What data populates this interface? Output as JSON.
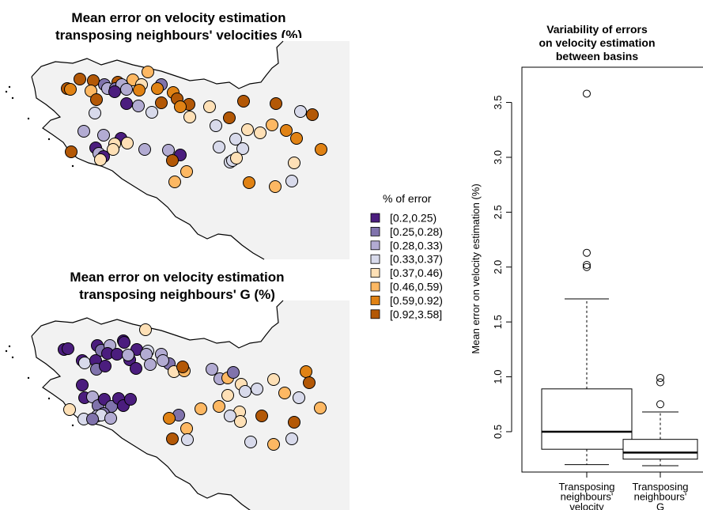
{
  "maps": {
    "top_title_lines": [
      "Mean error on velocity estimation",
      "transposing neighbours' velocities (%)"
    ],
    "bottom_title_lines": [
      "Mean error on velocity estimation",
      "transposing neighbours' G (%)"
    ],
    "legend": {
      "title": "% of error",
      "classes": [
        "[0.2,0.25)",
        "[0.25,0.28)",
        "[0.28,0.33)",
        "[0.33,0.37)",
        "[0.37,0.46)",
        "[0.46,0.59)",
        "[0.59,0.92)",
        "[0.92,3.58]"
      ],
      "colors": [
        "#4b1d7e",
        "#8073ac",
        "#b2abd2",
        "#d8daeb",
        "#fee0b6",
        "#fdb863",
        "#e08214",
        "#b35806"
      ]
    }
  },
  "chart_data": {
    "type": "boxplot",
    "title_lines": [
      "Variability of errors",
      "on velocity estimation",
      "between basins"
    ],
    "ylabel": "Mean error on velocity estimation (%)",
    "ylim": [
      0.2,
      3.65
    ],
    "yticks": [
      0.5,
      1.0,
      1.5,
      2.0,
      2.5,
      3.0,
      3.5
    ],
    "ytick_labels": [
      "0.5",
      "1.0",
      "1.5",
      "2.0",
      "2.5",
      "3.0",
      "3.5"
    ],
    "categories": [
      [
        "Transposing",
        "neighbours'",
        "velocity"
      ],
      [
        "Transposing",
        "neighbours'",
        "G"
      ]
    ],
    "boxes": [
      {
        "whisker_low": 0.2,
        "q1": 0.34,
        "median": 0.5,
        "q3": 0.89,
        "whisker_high": 1.71,
        "outliers": [
          2.0,
          2.02,
          2.13,
          3.58
        ]
      },
      {
        "whisker_low": 0.19,
        "q1": 0.25,
        "median": 0.31,
        "q3": 0.43,
        "whisker_high": 0.68,
        "outliers": [
          0.75,
          0.95,
          0.99
        ]
      }
    ]
  }
}
